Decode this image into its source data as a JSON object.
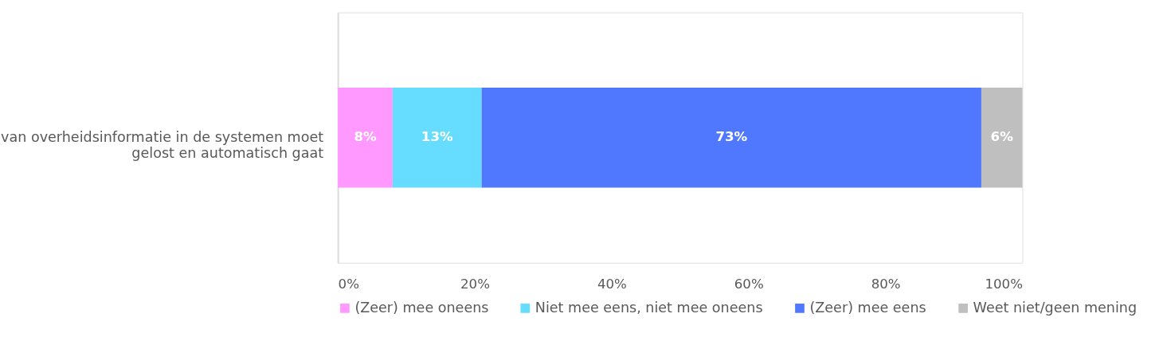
{
  "chart_data": {
    "type": "bar",
    "orientation": "horizontal",
    "stacked": true,
    "categories": [
      "van overheidsinformatie in de systemen moet\ngelost en automatisch gaat"
    ],
    "series": [
      {
        "name": "(Zeer) mee oneens",
        "color": "#ff99ff",
        "values": [
          8
        ],
        "value_labels": [
          "8%"
        ]
      },
      {
        "name": "Niet mee eens, niet mee oneens",
        "color": "#66ddff",
        "values": [
          13
        ],
        "value_labels": [
          "13%"
        ]
      },
      {
        "name": "(Zeer) mee eens",
        "color": "#5078ff",
        "values": [
          73
        ],
        "value_labels": [
          "73%"
        ]
      },
      {
        "name": "Weet niet/geen mening",
        "color": "#bfbfbf",
        "values": [
          6
        ],
        "value_labels": [
          "6%"
        ]
      }
    ],
    "xlim": [
      0,
      100
    ],
    "xticks": [
      {
        "value": 0,
        "label": "0%"
      },
      {
        "value": 20,
        "label": "20%"
      },
      {
        "value": 40,
        "label": "40%"
      },
      {
        "value": 60,
        "label": "60%"
      },
      {
        "value": 80,
        "label": "80%"
      },
      {
        "value": 100,
        "label": "100%"
      }
    ],
    "grid": false,
    "legend": "bottom"
  }
}
